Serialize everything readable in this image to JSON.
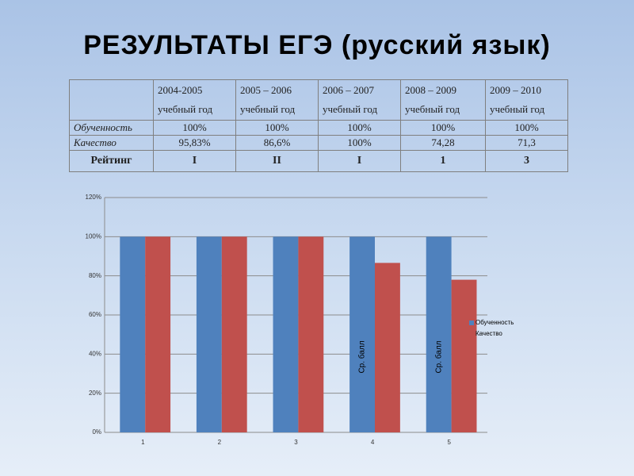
{
  "title": "РЕЗУЛЬТАТЫ ЕГЭ (русский язык)",
  "table": {
    "header": [
      "2004-2005 учебный год",
      "2005 – 2006 учебный год",
      "2006 – 2007 учебный год",
      "2008 – 2009 учебный год",
      "2009 – 2010 учебный год"
    ],
    "rows": [
      [
        "Обученность",
        "100%",
        "100%",
        "100%",
        "100%",
        "100%"
      ],
      [
        "Качество",
        "95,83%",
        "86,6%",
        "100%",
        "74,28",
        "71,3"
      ],
      [
        "Рейтинг",
        "I",
        "II",
        "I",
        "1",
        "3"
      ]
    ]
  },
  "chart_data": {
    "type": "bar",
    "categories": [
      "1",
      "2",
      "3",
      "4",
      "5"
    ],
    "series": [
      {
        "name": "Обученность",
        "color": "#4f81bd",
        "values": [
          100,
          100,
          100,
          100,
          100
        ]
      },
      {
        "name": "Качество",
        "color": "#c0504d",
        "values": [
          100,
          100,
          100,
          86.6,
          78
        ]
      }
    ],
    "ylim": [
      0,
      120
    ],
    "yticks": [
      {
        "value": 0,
        "label": "0%"
      },
      {
        "value": 20,
        "label": "20%"
      },
      {
        "value": 40,
        "label": "40%"
      },
      {
        "value": 60,
        "label": "60%"
      },
      {
        "value": 80,
        "label": "80%"
      },
      {
        "value": 100,
        "label": "100%"
      },
      {
        "value": 120,
        "label": "120%"
      }
    ],
    "grid": true,
    "annotations": [
      "Ср. балл",
      "Ср. балл"
    ]
  }
}
